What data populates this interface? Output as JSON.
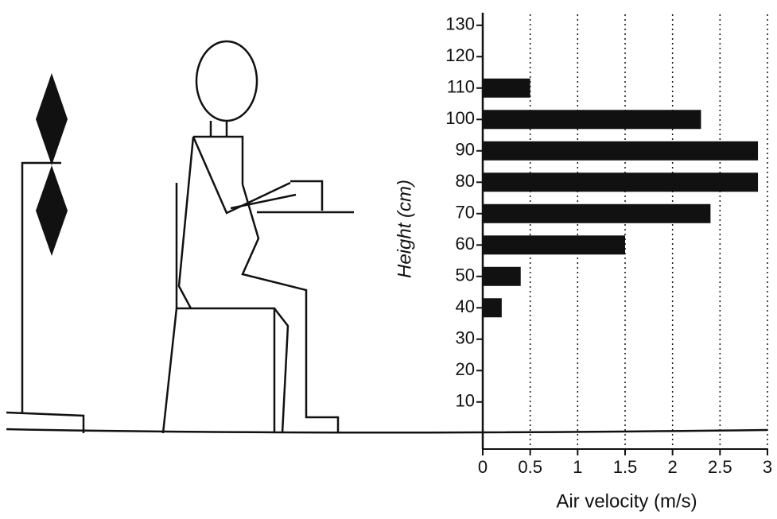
{
  "chart_data": {
    "type": "hbar",
    "xlabel": "Air velocity  (m/s)",
    "ylabel": "Height  (cm)",
    "y": [
      110,
      100,
      90,
      80,
      70,
      60,
      50,
      40
    ],
    "values": [
      0.5,
      2.3,
      2.9,
      2.9,
      2.4,
      1.5,
      0.4,
      0.2
    ],
    "color": "#111111",
    "xlim": [
      0,
      3
    ],
    "xticks": [
      0,
      0.5,
      1,
      1.5,
      2,
      2.5,
      3
    ],
    "ylim": [
      -5,
      134
    ],
    "yticks": [
      10,
      20,
      30,
      40,
      50,
      60,
      70,
      80,
      90,
      100,
      110,
      120,
      130
    ],
    "grid": true
  }
}
